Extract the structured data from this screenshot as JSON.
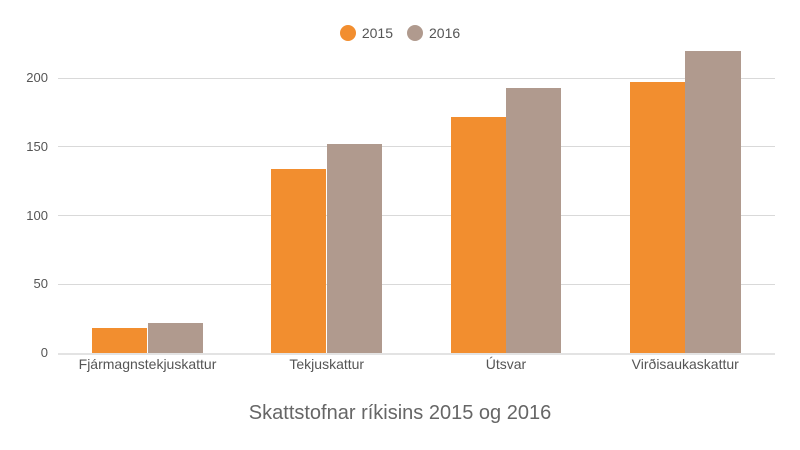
{
  "chart_data": {
    "type": "bar",
    "title": "Skattstofnar ríkisins 2015 og 2016",
    "xlabel": "",
    "ylabel": "",
    "categories": [
      "Fjármagnstekjuskattur",
      "Tekjuskattur",
      "Útsvar",
      "Virðisaukaskattur"
    ],
    "series": [
      {
        "name": "2015",
        "color": "#F28E2F",
        "values": [
          18,
          134,
          172,
          197
        ]
      },
      {
        "name": "2016",
        "color": "#B09A8E",
        "values": [
          22,
          152,
          193,
          220
        ]
      }
    ],
    "ylim": [
      0,
      228
    ],
    "yticks": [
      0,
      50,
      100,
      150,
      200
    ],
    "grid": true,
    "legend_position": "top"
  },
  "legend": {
    "items": [
      {
        "label": "2015",
        "color": "#F28E2F"
      },
      {
        "label": "2016",
        "color": "#B09A8E"
      }
    ]
  }
}
